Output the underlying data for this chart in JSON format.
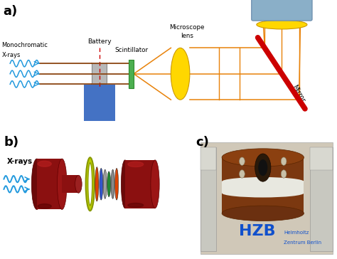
{
  "bg_color": "#ffffff",
  "panel_a_label": "a)",
  "panel_b_label": "b)",
  "panel_c_label": "c)",
  "xray_color": "#2299dd",
  "beam_color": "#8B4513",
  "orange_color": "#E8820A",
  "green_color": "#4CAF50",
  "yellow_color": "#FFD700",
  "red_color": "#CC0000",
  "blue_box_color": "#4472C4",
  "gray_box_color": "#B0B0B0",
  "ccd_box_color": "#8aafc8",
  "lens_color": "#FFD700",
  "mirror_color": "#CC0000",
  "dashed_red": "#CC0000",
  "dark_red": "#8B1010",
  "yellow_green": "#AACC00"
}
